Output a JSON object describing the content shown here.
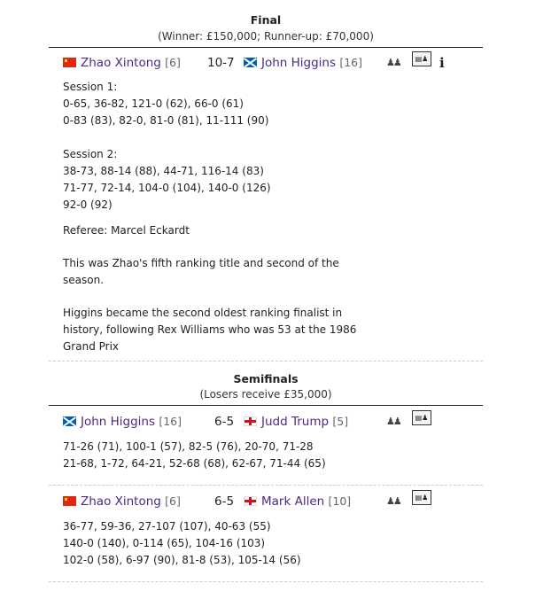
{
  "final": {
    "title": "Final",
    "subtitle": "(Winner: £150,000; Runner-up: £70,000)",
    "match": {
      "p1": {
        "flag": "china",
        "name": "Zhao Xintong",
        "seed": "[6]"
      },
      "score": "10-7",
      "p2": {
        "flag": "scotland",
        "name": "John Higgins",
        "seed": "[16]"
      },
      "icons": [
        "head-to-head-icon",
        "scorecard-icon",
        "info-icon"
      ]
    },
    "session1_label": "Session 1:",
    "session1": [
      "0-65, 36-82, 121-0 (62), 66-0 (61)",
      "0-83 (83), 82-0, 81-0 (81), 11-111 (90)"
    ],
    "session2_label": "Session 2:",
    "session2": [
      "38-73, 88-14 (88), 44-71, 116-14 (83)",
      "71-77, 72-14, 104-0 (104), 140-0 (126)",
      "92-0 (92)"
    ],
    "referee": "Referee: Marcel Eckardt",
    "note1": [
      "This was Zhao's fifth ranking title and second of the",
      "season."
    ],
    "note2": [
      "Higgins became the second oldest ranking finalist in",
      "history, following Rex Williams who was 53 at the 1986",
      "Grand Prix"
    ]
  },
  "semis": {
    "title": "Semifinals",
    "subtitle": "(Losers receive £35,000)",
    "matches": [
      {
        "p1": {
          "flag": "scotland",
          "name": "John Higgins",
          "seed": "[16]"
        },
        "score": "6-5",
        "p2": {
          "flag": "england",
          "name": "Judd Trump",
          "seed": "[5]"
        },
        "frames": [
          "71-26 (71), 100-1 (57), 82-5 (76), 20-70, 71-28",
          "21-68, 1-72, 64-21, 52-68 (68), 62-67, 71-44 (65)"
        ]
      },
      {
        "p1": {
          "flag": "china",
          "name": "Zhao Xintong",
          "seed": "[6]"
        },
        "score": "6-5",
        "p2": {
          "flag": "england",
          "name": "Mark Allen",
          "seed": "[10]"
        },
        "frames": [
          "36-77, 59-36, 27-107 (107), 40-63 (55)",
          "140-0 (140), 0-114 (65), 104-16 (103)",
          "102-0 (58), 6-97 (90), 81-8 (53), 105-14 (56)"
        ]
      }
    ]
  },
  "colors": {
    "player_link": "#4b2a82",
    "divider": "#cccccc"
  }
}
